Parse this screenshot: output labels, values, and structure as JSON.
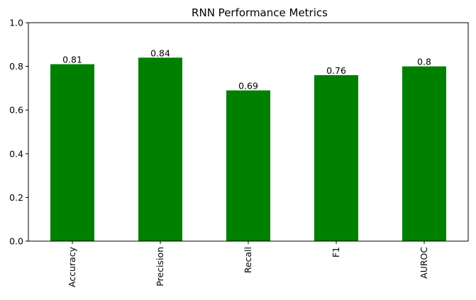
{
  "chart_data": {
    "type": "bar",
    "title": "RNN Performance Metrics",
    "xlabel": "",
    "ylabel": "",
    "categories": [
      "Accuracy",
      "Precision",
      "Recall",
      "F1",
      "AUROC"
    ],
    "values": [
      0.81,
      0.84,
      0.69,
      0.76,
      0.8
    ],
    "data_labels": [
      "0.81",
      "0.84",
      "0.69",
      "0.76",
      "0.8"
    ],
    "ylim": [
      0,
      1
    ],
    "yticks": [
      0.0,
      0.2,
      0.4,
      0.6,
      0.8,
      1.0
    ],
    "ytick_labels": [
      "0.0",
      "0.2",
      "0.4",
      "0.6",
      "0.8",
      "1.0"
    ],
    "x_tick_rotation": "vertical",
    "grid": false,
    "legend": "none",
    "bar_color": "#008000"
  }
}
